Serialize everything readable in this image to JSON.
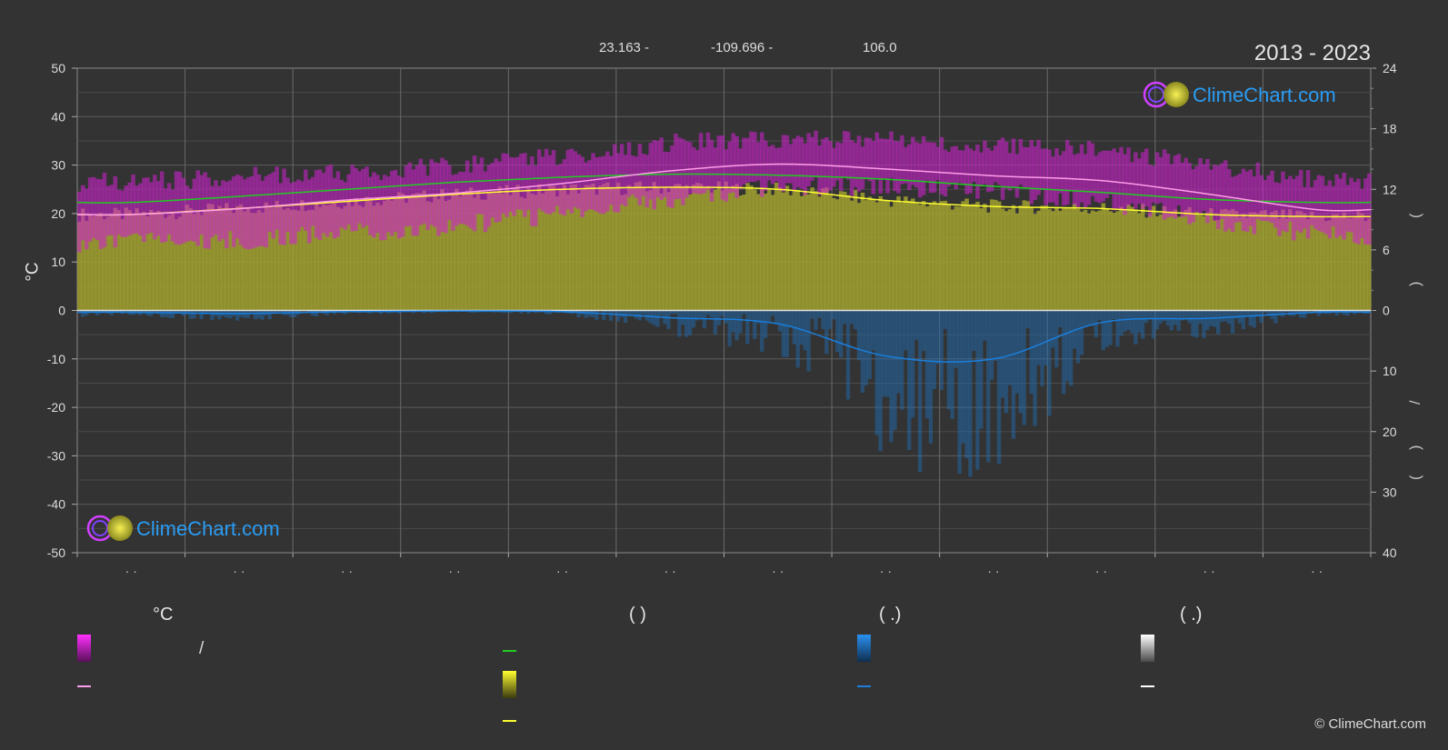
{
  "header": {
    "lat": "23.163 -",
    "lon": "-109.696 -",
    "elev": "106.0",
    "years": "2013 - 2023"
  },
  "axes": {
    "left_unit": "°C"
  },
  "legend": {
    "temp_head": "°C",
    "col2_head": "(            )",
    "col3_head": "(   .)",
    "col4_head": "(   .)",
    "slash": "/"
  },
  "watermark": "ClimeChart.com",
  "copyright": "© ClimeChart.com",
  "colors": {
    "background": "#333333",
    "temp_band": "#e020e0",
    "temp_mean": "#ff9ce8",
    "daylight": "#22cc22",
    "sunshine_band": "#bcbc30",
    "sunshine_mean": "#ffff30",
    "precip": "#1a7fdd",
    "snow": "#ffffff"
  },
  "chart_data": {
    "type": "line",
    "x_ticks": [
      "· ·",
      "· ·",
      "· ·",
      "· ·",
      "· ·",
      "· ·",
      "· ·",
      "· ·",
      "· ·",
      "· ·",
      "· ·",
      "· ·"
    ],
    "y_left": {
      "label": "°C",
      "ticks": [
        50,
        40,
        30,
        20,
        10,
        0,
        -10,
        -20,
        -30,
        -40,
        -50
      ],
      "ylim": [
        -50,
        50
      ]
    },
    "y_right_top": {
      "ticks": [
        24,
        18,
        12,
        6,
        0
      ],
      "ylim": [
        0,
        24
      ]
    },
    "y_right_bottom": {
      "ticks": [
        10,
        20,
        30,
        40
      ],
      "ylim": [
        0,
        40
      ]
    },
    "series": [
      {
        "key": "temp_mean",
        "values": [
          19.8,
          21.0,
          22.8,
          24.2,
          26.2,
          28.8,
          30.2,
          29.2,
          27.8,
          26.8,
          24.0,
          20.8
        ]
      },
      {
        "key": "temp_max_band",
        "values": [
          26.5,
          27.5,
          28.5,
          30.0,
          32.0,
          34.5,
          35.5,
          35.0,
          34.0,
          33.0,
          30.0,
          27.0
        ]
      },
      {
        "key": "temp_min_band",
        "values": [
          14.0,
          14.5,
          16.0,
          17.5,
          20.0,
          23.0,
          25.5,
          25.5,
          24.5,
          22.5,
          18.5,
          15.5
        ]
      },
      {
        "key": "daylight",
        "values": [
          10.7,
          11.3,
          12.0,
          12.7,
          13.2,
          13.5,
          13.4,
          13.0,
          12.3,
          11.7,
          11.0,
          10.7
        ]
      },
      {
        "key": "sunshine",
        "values": [
          9.5,
          10.1,
          10.8,
          11.5,
          12.0,
          12.2,
          12.0,
          10.9,
          10.3,
          10.1,
          9.5,
          9.3
        ]
      },
      {
        "key": "precip_mean",
        "values": [
          0.3,
          0.5,
          0.2,
          0.1,
          0.2,
          1.2,
          2.2,
          7.5,
          8.0,
          2.0,
          1.3,
          0.3
        ]
      },
      {
        "key": "snow",
        "values": [
          0,
          0,
          0,
          0,
          0,
          0,
          0,
          0,
          0,
          0,
          0,
          0
        ]
      }
    ],
    "grid": true
  }
}
